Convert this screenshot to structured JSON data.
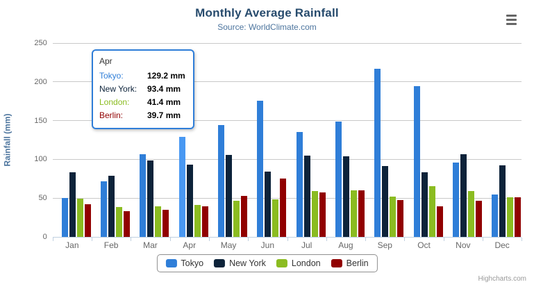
{
  "chart": {
    "credits": "Highcharts.com",
    "background": "#ffffff",
    "grid_color": "#c9c9c9",
    "axis_color": "#c0d0e0"
  },
  "chart_data": {
    "type": "bar",
    "title": "Monthly Average Rainfall",
    "subtitle": "Source: WorldClimate.com",
    "ylabel": "Rainfall (mm)",
    "xlabel": "",
    "categories": [
      "Jan",
      "Feb",
      "Mar",
      "Apr",
      "May",
      "Jun",
      "Jul",
      "Aug",
      "Sep",
      "Oct",
      "Nov",
      "Dec"
    ],
    "series": [
      {
        "name": "Tokyo",
        "color": "#2f7ed8",
        "hover_color": "#4998f2",
        "values": [
          49.9,
          71.5,
          106.4,
          129.2,
          144.0,
          176.0,
          135.6,
          148.5,
          216.4,
          194.1,
          95.6,
          54.4
        ]
      },
      {
        "name": "New York",
        "color": "#0d233a",
        "values": [
          83.6,
          78.8,
          98.5,
          93.4,
          106.0,
          84.5,
          105.0,
          104.3,
          91.2,
          83.5,
          106.6,
          92.3
        ]
      },
      {
        "name": "London",
        "color": "#8bbc21",
        "values": [
          48.9,
          38.8,
          39.3,
          41.4,
          47.0,
          48.3,
          59.0,
          59.6,
          52.4,
          65.2,
          59.3,
          51.2
        ]
      },
      {
        "name": "Berlin",
        "color": "#910000",
        "values": [
          42.4,
          33.2,
          34.5,
          39.7,
          52.6,
          75.5,
          57.4,
          60.4,
          47.6,
          39.1,
          46.8,
          51.1
        ]
      }
    ],
    "ylim": [
      0,
      250
    ],
    "ytick_interval": 50,
    "grid": true,
    "legend_position": "bottom",
    "hovered": {
      "category": "Apr",
      "series": "Tokyo"
    }
  },
  "tooltip": {
    "header": "Apr",
    "border_color": "#2f7ed8",
    "rows": [
      {
        "label": "Tokyo:",
        "value": "129.2 mm",
        "color": "#2f7ed8"
      },
      {
        "label": "New York:",
        "value": "93.4 mm",
        "color": "#0d233a"
      },
      {
        "label": "London:",
        "value": "41.4 mm",
        "color": "#8bbc21"
      },
      {
        "label": "Berlin:",
        "value": "39.7 mm",
        "color": "#910000"
      }
    ]
  }
}
